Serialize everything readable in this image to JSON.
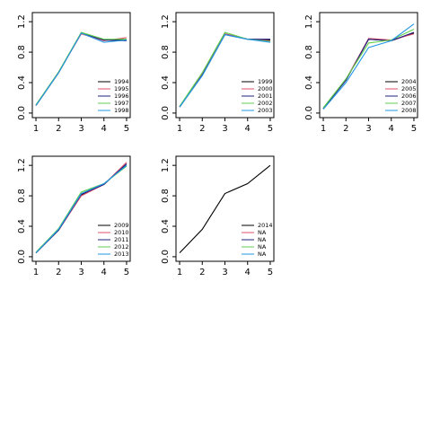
{
  "chart_data": [
    {
      "type": "line",
      "x": [
        1,
        2,
        3,
        4,
        5
      ],
      "xlim": [
        0.84,
        5.16
      ],
      "ylim": [
        -0.06,
        1.32
      ],
      "xticks": [
        1,
        2,
        3,
        4,
        5
      ],
      "yticks": [
        {
          "value": 0,
          "label": "0.0"
        },
        {
          "value": 0.4,
          "label": "0.4"
        },
        {
          "value": 0.8,
          "label": "0.8"
        },
        {
          "value": 1.2,
          "label": "1.2"
        }
      ],
      "legend": "bottom-right",
      "series": [
        {
          "name": "1994",
          "color": "#000000",
          "values": [
            0.1,
            0.53,
            1.05,
            0.96,
            0.96
          ]
        },
        {
          "name": "1995",
          "color": "#df536b",
          "values": [
            0.1,
            0.54,
            1.04,
            0.95,
            0.99
          ]
        },
        {
          "name": "1996",
          "color": "#1f1f80",
          "values": [
            0.1,
            0.53,
            1.05,
            0.96,
            0.95
          ]
        },
        {
          "name": "1997",
          "color": "#61d04f",
          "values": [
            0.11,
            0.54,
            1.06,
            0.97,
            0.97
          ]
        },
        {
          "name": "1998",
          "color": "#2297e6",
          "values": [
            0.1,
            0.53,
            1.05,
            0.93,
            0.96
          ]
        }
      ]
    },
    {
      "type": "line",
      "x": [
        1,
        2,
        3,
        4,
        5
      ],
      "xlim": [
        0.84,
        5.16
      ],
      "ylim": [
        -0.06,
        1.32
      ],
      "xticks": [
        1,
        2,
        3,
        4,
        5
      ],
      "yticks": [
        {
          "value": 0,
          "label": "0.0"
        },
        {
          "value": 0.4,
          "label": "0.4"
        },
        {
          "value": 0.8,
          "label": "0.8"
        },
        {
          "value": 1.2,
          "label": "1.2"
        }
      ],
      "legend": "bottom-right",
      "series": [
        {
          "name": "1999",
          "color": "#000000",
          "values": [
            0.08,
            0.5,
            1.04,
            0.97,
            0.96
          ]
        },
        {
          "name": "2000",
          "color": "#df536b",
          "values": [
            0.08,
            0.51,
            1.04,
            0.97,
            0.95
          ]
        },
        {
          "name": "2001",
          "color": "#1f1f80",
          "values": [
            0.08,
            0.5,
            1.03,
            0.97,
            0.97
          ]
        },
        {
          "name": "2002",
          "color": "#61d04f",
          "values": [
            0.09,
            0.53,
            1.06,
            0.97,
            0.94
          ]
        },
        {
          "name": "2003",
          "color": "#2297e6",
          "values": [
            0.08,
            0.49,
            1.03,
            0.97,
            0.93
          ]
        }
      ]
    },
    {
      "type": "line",
      "x": [
        1,
        2,
        3,
        4,
        5
      ],
      "xlim": [
        0.84,
        5.16
      ],
      "ylim": [
        -0.06,
        1.32
      ],
      "xticks": [
        1,
        2,
        3,
        4,
        5
      ],
      "yticks": [
        {
          "value": 0,
          "label": "0.0"
        },
        {
          "value": 0.4,
          "label": "0.4"
        },
        {
          "value": 0.8,
          "label": "0.8"
        },
        {
          "value": 1.2,
          "label": "1.2"
        }
      ],
      "legend": "bottom-right",
      "series": [
        {
          "name": "2004",
          "color": "#000000",
          "values": [
            0.06,
            0.44,
            0.97,
            0.95,
            1.05
          ]
        },
        {
          "name": "2005",
          "color": "#df536b",
          "values": [
            0.06,
            0.44,
            0.98,
            0.96,
            1.04
          ]
        },
        {
          "name": "2006",
          "color": "#1f1f80",
          "values": [
            0.06,
            0.43,
            0.97,
            0.95,
            1.06
          ]
        },
        {
          "name": "2007",
          "color": "#61d04f",
          "values": [
            0.07,
            0.45,
            0.92,
            0.96,
            1.1
          ]
        },
        {
          "name": "2008",
          "color": "#2297e6",
          "values": [
            0.05,
            0.4,
            0.86,
            0.95,
            1.17
          ]
        }
      ]
    },
    {
      "type": "line",
      "x": [
        1,
        2,
        3,
        4,
        5
      ],
      "xlim": [
        0.84,
        5.16
      ],
      "ylim": [
        -0.06,
        1.32
      ],
      "xticks": [
        1,
        2,
        3,
        4,
        5
      ],
      "yticks": [
        {
          "value": 0,
          "label": "0.0"
        },
        {
          "value": 0.4,
          "label": "0.4"
        },
        {
          "value": 0.8,
          "label": "0.8"
        },
        {
          "value": 1.2,
          "label": "1.2"
        }
      ],
      "legend": "bottom-right",
      "series": [
        {
          "name": "2009",
          "color": "#000000",
          "values": [
            0.05,
            0.35,
            0.81,
            0.95,
            1.22
          ]
        },
        {
          "name": "2010",
          "color": "#df536b",
          "values": [
            0.05,
            0.35,
            0.8,
            0.95,
            1.24
          ]
        },
        {
          "name": "2011",
          "color": "#1f1f80",
          "values": [
            0.05,
            0.35,
            0.82,
            0.95,
            1.22
          ]
        },
        {
          "name": "2012",
          "color": "#61d04f",
          "values": [
            0.06,
            0.37,
            0.85,
            0.96,
            1.19
          ]
        },
        {
          "name": "2013",
          "color": "#2297e6",
          "values": [
            0.05,
            0.36,
            0.83,
            0.96,
            1.2
          ]
        }
      ]
    },
    {
      "type": "line",
      "x": [
        1,
        2,
        3,
        4,
        5
      ],
      "xlim": [
        0.84,
        5.16
      ],
      "ylim": [
        -0.06,
        1.32
      ],
      "xticks": [
        1,
        2,
        3,
        4,
        5
      ],
      "yticks": [
        {
          "value": 0,
          "label": "0.0"
        },
        {
          "value": 0.4,
          "label": "0.4"
        },
        {
          "value": 0.8,
          "label": "0.8"
        },
        {
          "value": 1.2,
          "label": "1.2"
        }
      ],
      "legend": "bottom-right",
      "series": [
        {
          "name": "2014",
          "color": "#000000",
          "values": [
            0.05,
            0.36,
            0.83,
            0.96,
            1.2
          ]
        },
        {
          "name": "NA",
          "color": "#df536b",
          "values": [
            null,
            null,
            null,
            null,
            null
          ]
        },
        {
          "name": "NA",
          "color": "#1f1f80",
          "values": [
            null,
            null,
            null,
            null,
            null
          ]
        },
        {
          "name": "NA",
          "color": "#61d04f",
          "values": [
            null,
            null,
            null,
            null,
            null
          ]
        },
        {
          "name": "NA",
          "color": "#2297e6",
          "values": [
            null,
            null,
            null,
            null,
            null
          ]
        }
      ]
    }
  ]
}
